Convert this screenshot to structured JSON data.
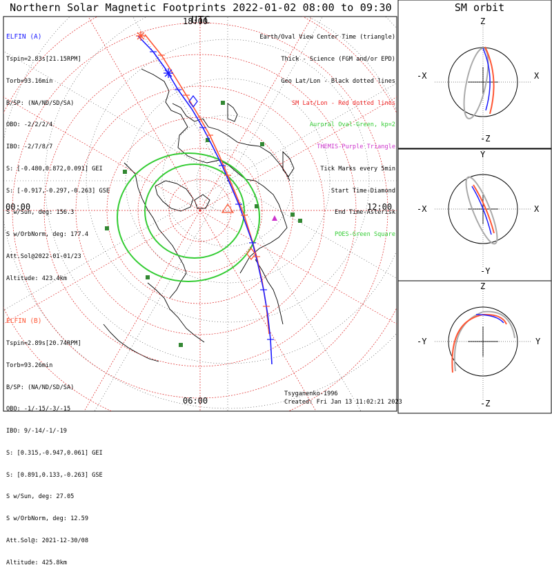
{
  "title": "Northern Solar Magnetic Footprints 2022-01-02 08:00 to 09:30 UTC",
  "sm_title": "SM orbit",
  "map": {
    "hour_labels": {
      "top": "18:00",
      "left": "00:00",
      "right": "12:00",
      "bottom": "06:00"
    },
    "colors": {
      "probe_a": "#1a1aff",
      "probe_b": "#ff5533",
      "sm_grid": "#dd2222",
      "auroral_oval": "#33cc33",
      "poes_square": "#338833",
      "themis_triangle": "#cc33cc",
      "coast": "#000000"
    },
    "poes_square_count": 10,
    "themis_triangle_count": 1
  },
  "legend": [
    {
      "text": "Earth/Oval View Center Time (triangle)",
      "color": "#000000"
    },
    {
      "text": "Thick - Science (FGM and/or EPD)",
      "color": "#000000"
    },
    {
      "text": "Geo Lat/Lon - Black dotted lines",
      "color": "#000000"
    },
    {
      "text": "SM Lat/Lon - Red dotted lines",
      "color": "#ee2222"
    },
    {
      "text": "Auroral Oval-Green, kp=2",
      "color": "#33cc33"
    },
    {
      "text": "THEMIS-Purple Triangle",
      "color": "#cc33cc"
    },
    {
      "text": "Tick Marks every 5min",
      "color": "#000000"
    },
    {
      "text": "Start Time-Diamond",
      "color": "#000000"
    },
    {
      "text": "End Time-Asterisk",
      "color": "#000000"
    },
    {
      "text": "POES-Green Square",
      "color": "#33cc33"
    }
  ],
  "probe_a": {
    "name": "ELFIN (A)",
    "color": "#1a1aff",
    "lines": [
      "Tspin=2.83s[21.15RPM]",
      "Torb=93.16min",
      "B/SP: (NA/ND/SD/SA)",
      "OBO: -2/2/2/4",
      "IBO: -2/7/8/7",
      "S: [-0.480,0.872,0.091] GEI",
      "S: [-0.917,-0.297,-0.263] GSE",
      "S w/Sun, deg: 156.3",
      "S w/OrbNorm, deg: 177.4",
      "Att.Sol@2022-01-01/23",
      "Altitude: 423.4km"
    ]
  },
  "probe_b": {
    "name": "ELFIN (B)",
    "color": "#ff5533",
    "lines": [
      "Tspin=2.89s[20.74RPM]",
      "Torb=93.26min",
      "B/SP: (NA/ND/SD/SA)",
      "OBO: -1/-15/-3/-15",
      "IBO: 9/-14/-1/-19",
      "S: [0.315,-0.947,0.061] GEI",
      "S: [0.891,0.133,-0.263] GSE",
      "S w/Sun, deg: 27.05",
      "S w/OrbNorm, deg: 12.59",
      "Att.Sol@: 2021-12-30/08",
      "Altitude: 425.8km"
    ]
  },
  "credit": "Tsyganenko-1996",
  "created": "Created: Fri Jan 13 11:02:21 2023",
  "sm_panels": [
    {
      "top": "Z",
      "bottom": "-Z",
      "left": "-X",
      "right": "X"
    },
    {
      "top": "Y",
      "bottom": "-Y",
      "left": "-X",
      "right": "X"
    },
    {
      "top": "Z",
      "bottom": "-Z",
      "left": "-Y",
      "right": "Y"
    }
  ]
}
